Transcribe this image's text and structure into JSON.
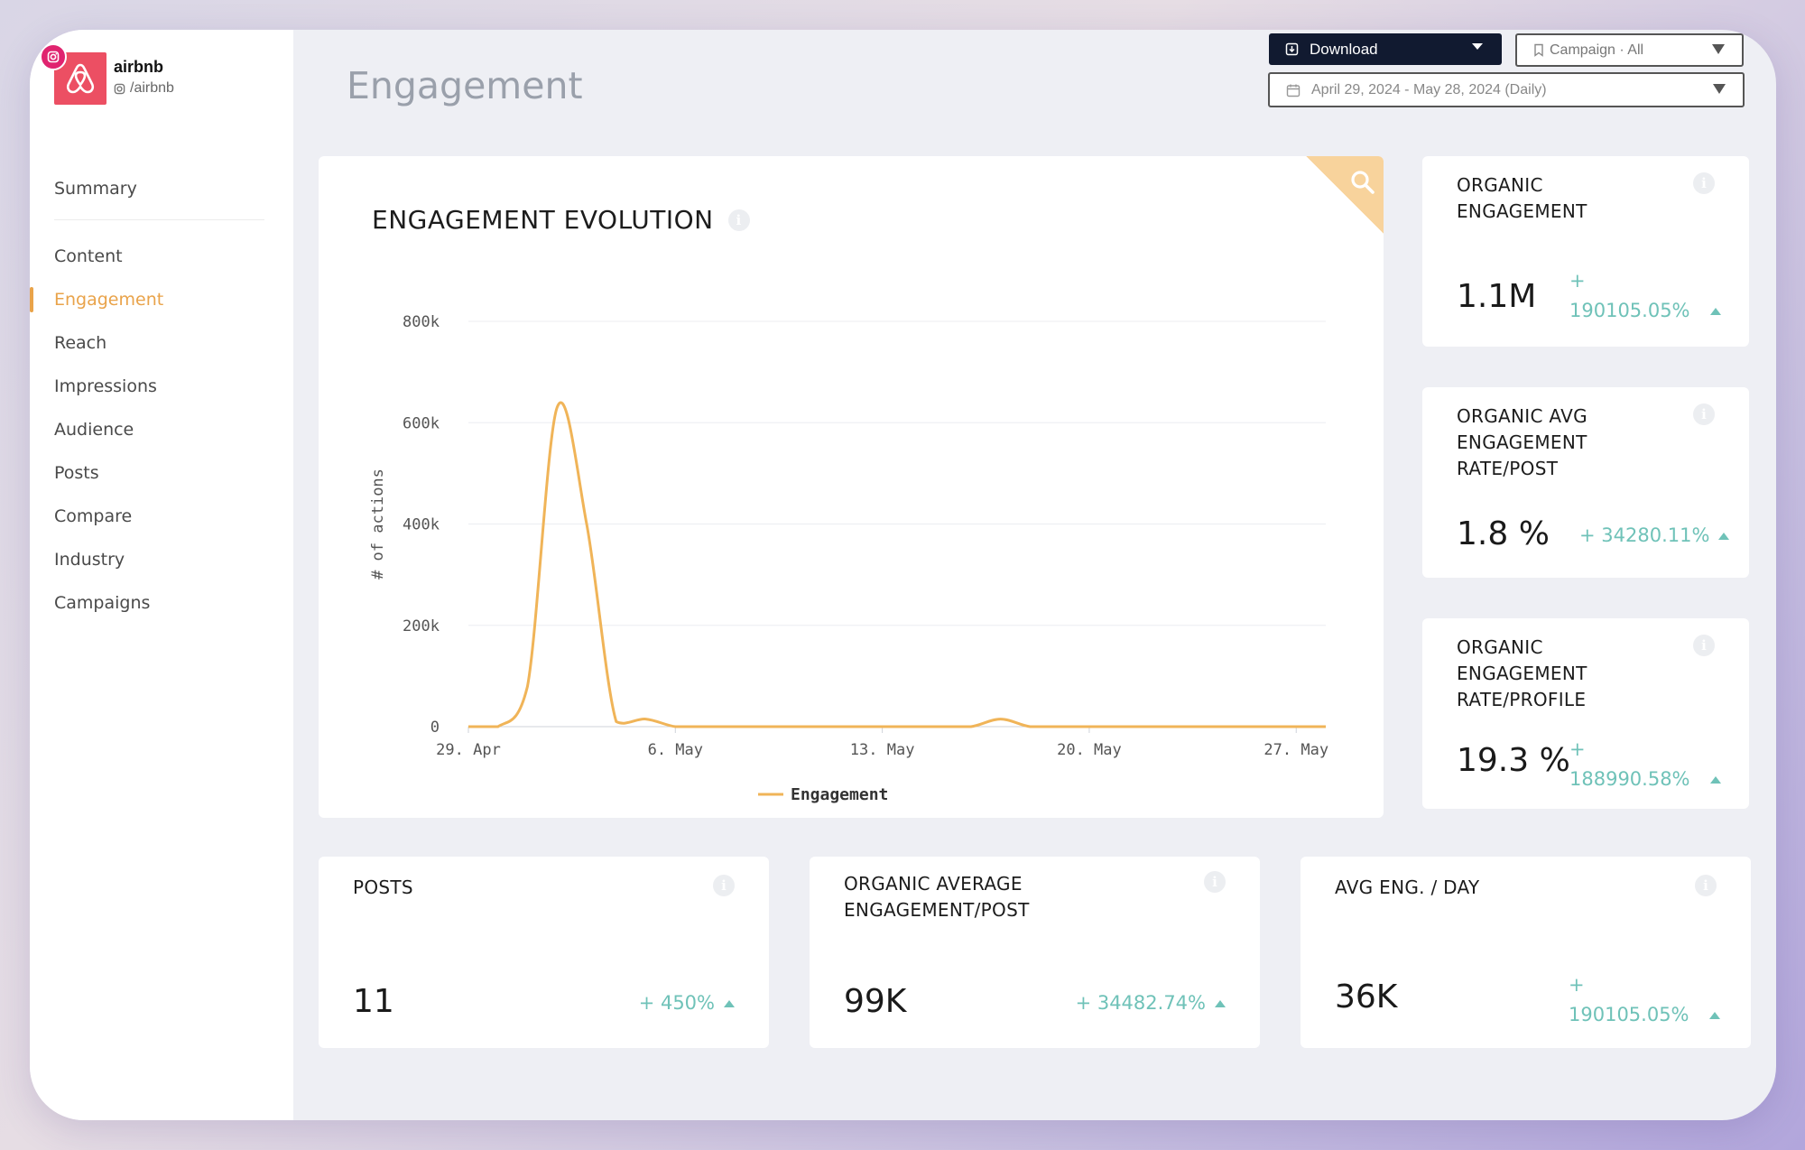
{
  "profile": {
    "name": "airbnb",
    "handle": "/airbnb"
  },
  "nav": {
    "summary": "Summary",
    "items": [
      {
        "label": "Content",
        "active": false
      },
      {
        "label": "Engagement",
        "active": true
      },
      {
        "label": "Reach",
        "active": false
      },
      {
        "label": "Impressions",
        "active": false
      },
      {
        "label": "Audience",
        "active": false
      },
      {
        "label": "Posts",
        "active": false
      },
      {
        "label": "Compare",
        "active": false
      },
      {
        "label": "Industry",
        "active": false
      },
      {
        "label": "Campaigns",
        "active": false
      }
    ]
  },
  "header": {
    "title": "Engagement",
    "download_label": "Download",
    "campaign_select": "Campaign · All",
    "date_range": "April 29, 2024 - May 28, 2024 (Daily)"
  },
  "chart_card": {
    "title": "ENGAGEMENT EVOLUTION"
  },
  "chart_data": {
    "type": "line",
    "ylabel": "# of actions",
    "ylim": [
      0,
      800000
    ],
    "y_ticks": [
      "0",
      "200k",
      "400k",
      "600k",
      "800k"
    ],
    "x_ticks": [
      "29. Apr",
      "6. May",
      "13. May",
      "20. May",
      "27. May"
    ],
    "series": [
      {
        "name": "Engagement",
        "color": "#f0b458",
        "x": [
          "2024-04-29",
          "2024-04-30",
          "2024-05-01",
          "2024-05-02",
          "2024-05-03",
          "2024-05-04",
          "2024-05-05",
          "2024-05-06",
          "2024-05-07",
          "2024-05-08",
          "2024-05-09",
          "2024-05-10",
          "2024-05-11",
          "2024-05-12",
          "2024-05-13",
          "2024-05-14",
          "2024-05-15",
          "2024-05-16",
          "2024-05-17",
          "2024-05-18",
          "2024-05-19",
          "2024-05-20",
          "2024-05-21",
          "2024-05-22",
          "2024-05-23",
          "2024-05-24",
          "2024-05-25",
          "2024-05-26",
          "2024-05-27",
          "2024-05-28"
        ],
        "values": [
          0,
          0,
          80000,
          630000,
          400000,
          10000,
          15000,
          0,
          0,
          0,
          0,
          0,
          0,
          0,
          0,
          0,
          0,
          0,
          15000,
          0,
          0,
          0,
          0,
          0,
          0,
          0,
          0,
          0,
          0,
          0
        ]
      }
    ],
    "legend": "bottom-center",
    "grid": true
  },
  "kpis_right": [
    {
      "title": "ORGANIC ENGAGEMENT",
      "value": "1.1M",
      "delta_sign": "+",
      "delta_value": "190105.05%"
    },
    {
      "title": "ORGANIC AVG ENGAGEMENT RATE/POST",
      "value": "1.8 %",
      "delta": "+ 34280.11%"
    },
    {
      "title": "ORGANIC ENGAGEMENT RATE/PROFILE",
      "value": "19.3 %",
      "delta_sign": "+",
      "delta_value": "188990.58%"
    }
  ],
  "kpis_bottom": [
    {
      "title": "POSTS",
      "value": "11",
      "delta": "+ 450%"
    },
    {
      "title": "ORGANIC AVERAGE ENGAGEMENT/POST",
      "value": "99K",
      "delta": "+ 34482.74%"
    },
    {
      "title": "AVG ENG. / DAY",
      "value": "36K",
      "delta_sign": "+",
      "delta_value": "190105.05%"
    }
  ],
  "colors": {
    "accent": "#e9a34a",
    "positive": "#6fc2b8",
    "brand": "#ec4f63",
    "dark": "#111a30"
  }
}
